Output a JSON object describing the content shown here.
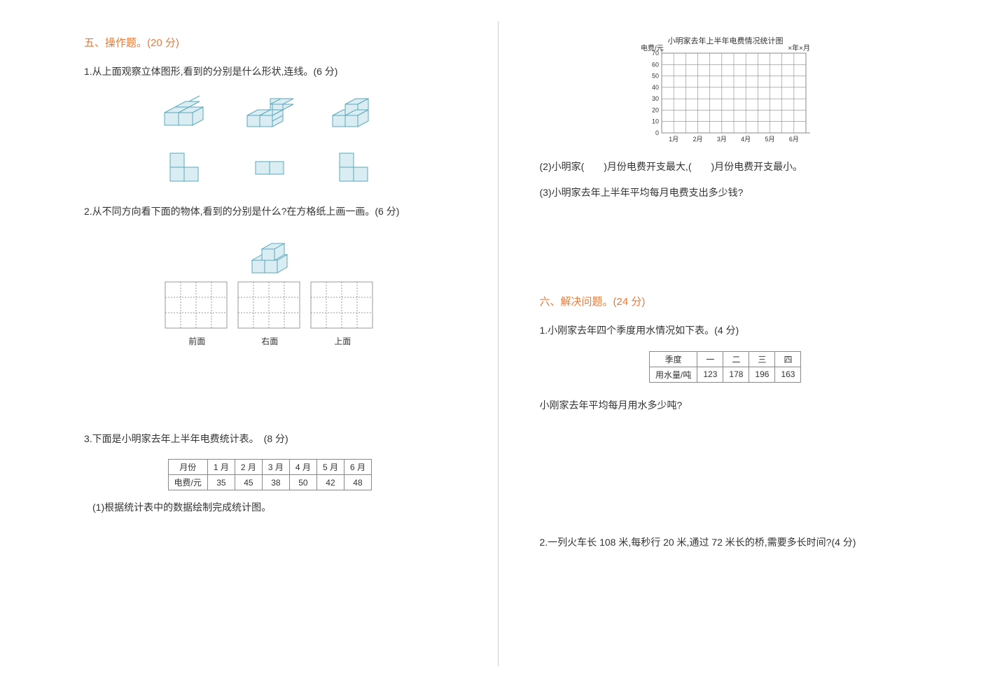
{
  "section5": {
    "title": "五、操作题。(20 分)",
    "q1": {
      "text": "1.从上面观察立体图形,看到的分别是什么形状,连线。(6 分)"
    },
    "q2": {
      "text": "2.从不同方向看下面的物体,看到的分别是什么?在方格纸上画一画。(6 分)",
      "labels": [
        "前面",
        "右面",
        "上面"
      ]
    },
    "q3": {
      "text": "3.下面是小明家去年上半年电费统计表。　(8 分)",
      "sub1": "(1)根据统计表中的数据绘制完成统计图。",
      "table": {
        "header_label": "月份",
        "row_label": "电费/元",
        "months": [
          "1 月",
          "2 月",
          "3 月",
          "4 月",
          "5 月",
          "6 月"
        ],
        "values": [
          35,
          45,
          38,
          50,
          42,
          48
        ]
      }
    }
  },
  "chart": {
    "title": "小明家去年上半年电费情况统计图",
    "ylabel": "电费/元",
    "date_label": "×年×月",
    "ymax": 70,
    "ystep": 10,
    "yticks": [
      0,
      10,
      20,
      30,
      40,
      50,
      60,
      70
    ],
    "xlabels": [
      "1月",
      "2月",
      "3月",
      "4月",
      "5月",
      "6月"
    ],
    "grid_color": "#888",
    "text_color": "#333"
  },
  "right": {
    "q2": "(2)小明家(　　)月份电费开支最大,(　　)月份电费开支最小。",
    "q3": "(3)小明家去年上半年平均每月电费支出多少钱?"
  },
  "section6": {
    "title": "六、解决问题。(24 分)",
    "q1": {
      "text": "1.小刚家去年四个季度用水情况如下表。(4 分)",
      "table": {
        "header_label": "季度",
        "row_label": "用水量/吨",
        "quarters": [
          "一",
          "二",
          "三",
          "四"
        ],
        "values": [
          123,
          178,
          196,
          163
        ]
      },
      "sub": "小刚家去年平均每月用水多少吨?"
    },
    "q2": {
      "text": "2.一列火车长 108 米,每秒行 20 米,通过 72 米长的桥,需要多长时间?(4 分)"
    }
  },
  "cube_style": {
    "fill": "#d9edf2",
    "stroke": "#5aa8bd",
    "stroke_width": 1
  },
  "grid_style": {
    "rows": 3,
    "cols": 4,
    "cell": 22,
    "stroke": "#999",
    "dash": "2,2"
  }
}
